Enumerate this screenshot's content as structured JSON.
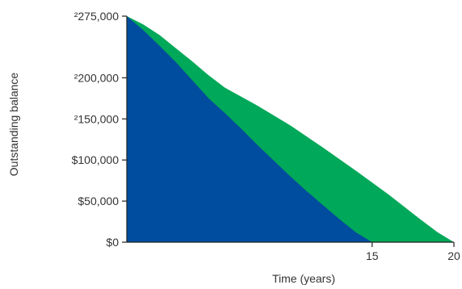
{
  "chart_data": {
    "type": "area",
    "xlabel": "Time (years)",
    "ylabel": "Outstanding balance",
    "xlim": [
      0,
      20
    ],
    "ylim": [
      0,
      275000
    ],
    "x_ticks": [
      {
        "value": 15,
        "label": "15"
      },
      {
        "value": 20,
        "label": "20"
      }
    ],
    "y_ticks": [
      {
        "value": 0,
        "label": "$0"
      },
      {
        "value": 50000,
        "label": "$50,000"
      },
      {
        "value": 100000,
        "label": "$100,000"
      },
      {
        "value": 150000,
        "label": "²150,000"
      },
      {
        "value": 200000,
        "label": "²200,000"
      },
      {
        "value": 275000,
        "label": "²275,000"
      }
    ],
    "grid": false,
    "legend": "none",
    "series": [
      {
        "color": "#00a859",
        "x": [
          0,
          1,
          2,
          3,
          4,
          5,
          6,
          8,
          10,
          12,
          14,
          16,
          18,
          19,
          20
        ],
        "values": [
          275000,
          265000,
          252000,
          236000,
          220000,
          203000,
          188000,
          166000,
          142000,
          115000,
          87000,
          58000,
          27000,
          12000,
          0
        ]
      },
      {
        "color": "#004c9e",
        "x": [
          0,
          1,
          2,
          3,
          4,
          5,
          6,
          7,
          8,
          9,
          10,
          11,
          12,
          13,
          14,
          15
        ],
        "values": [
          275000,
          258000,
          239000,
          219000,
          197000,
          175000,
          157000,
          138000,
          118000,
          99000,
          80000,
          62000,
          45000,
          28000,
          12000,
          0
        ]
      }
    ]
  }
}
